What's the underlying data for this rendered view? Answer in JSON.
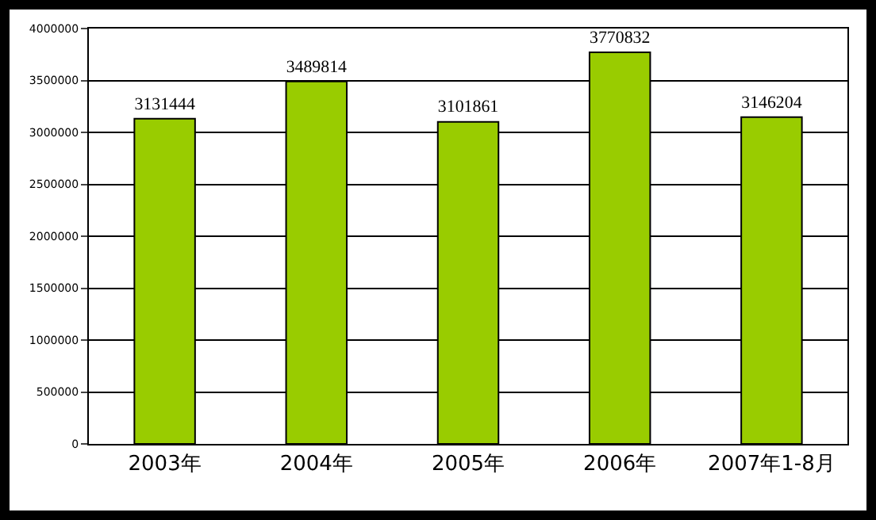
{
  "chart_data": {
    "type": "bar",
    "categories": [
      "2003年",
      "2004年",
      "2005年",
      "2006年",
      "2007年1-8月"
    ],
    "values": [
      3131444,
      3489814,
      3101861,
      3770832,
      3146204
    ],
    "color": "#99cc00",
    "ylim": [
      0,
      4000000
    ],
    "yticks": [
      0,
      500000,
      1000000,
      1500000,
      2000000,
      2500000,
      3000000,
      3500000,
      4000000
    ],
    "grid": "y",
    "data_labels": true
  }
}
